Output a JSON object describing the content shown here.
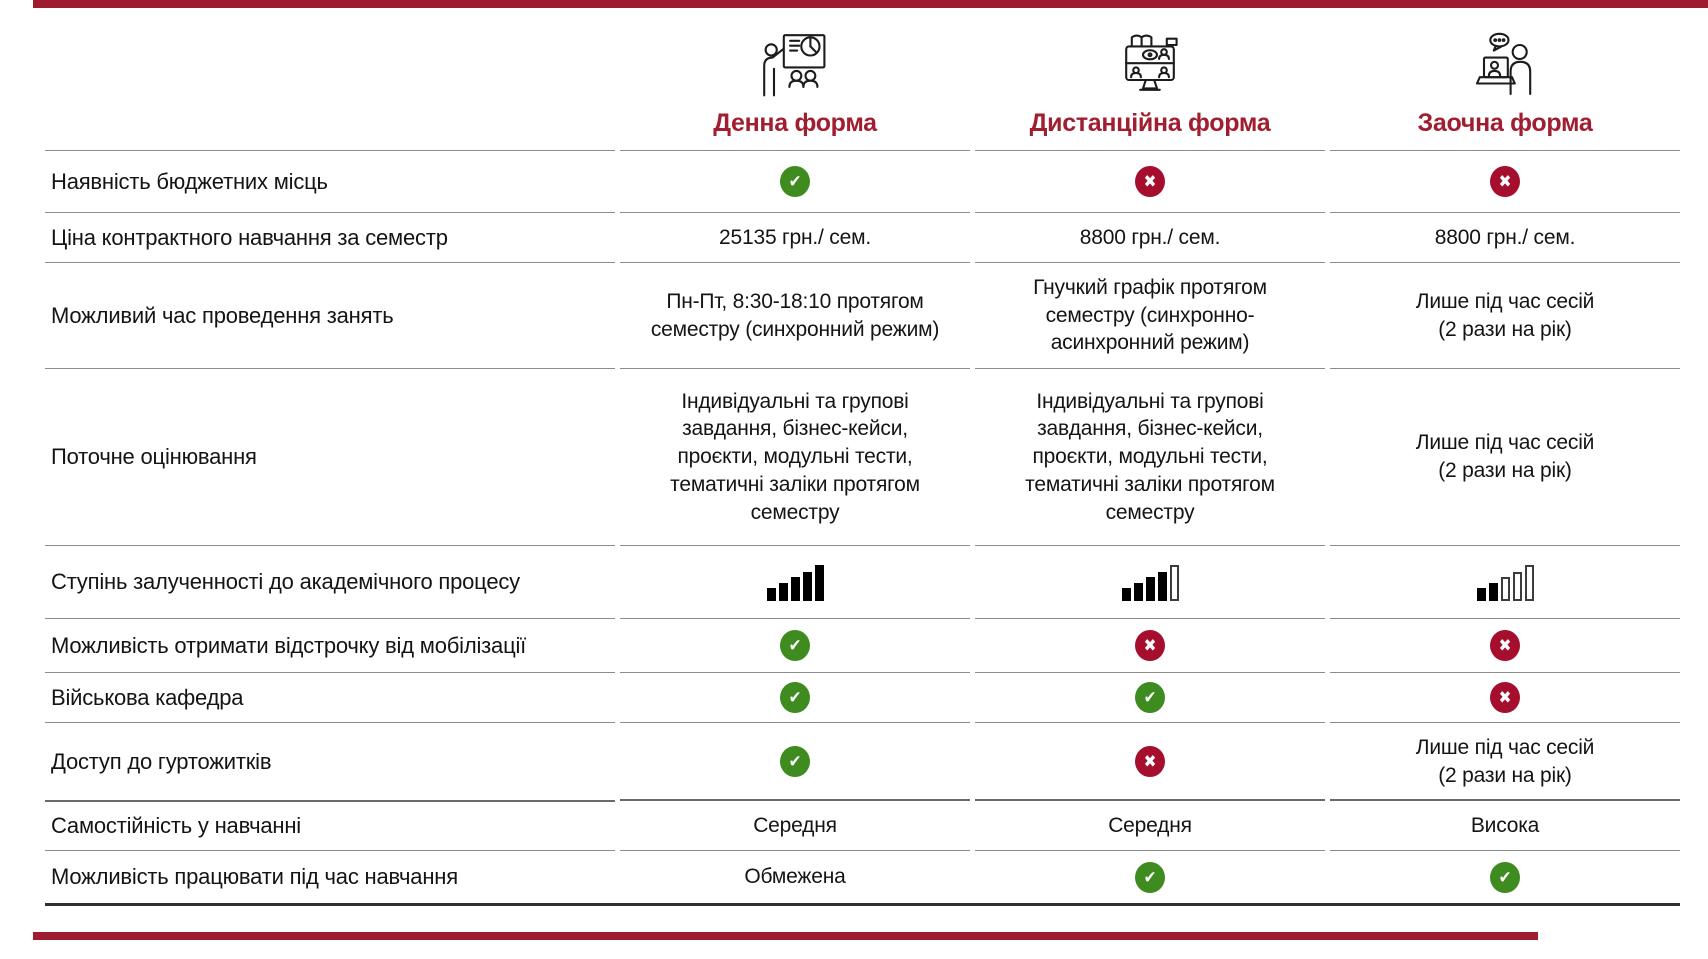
{
  "theme": {
    "accent_red": "#9e1b30",
    "header_text_red": "#a01e2f",
    "check_green": "#3e8b1f",
    "cross_red": "#a50e2d",
    "bar_black": "#000000"
  },
  "header": {
    "columns": [
      {
        "label": "Денна форма",
        "icon": "presentation-icon"
      },
      {
        "label": "Дистанційна форма",
        "icon": "online-learning-icon"
      },
      {
        "label": "Заочна форма",
        "icon": "consultation-icon"
      }
    ]
  },
  "rows": [
    {
      "label": "Наявність бюджетних місць",
      "cells": [
        {
          "type": "mark",
          "value": "yes"
        },
        {
          "type": "mark",
          "value": "no"
        },
        {
          "type": "mark",
          "value": "no"
        }
      ]
    },
    {
      "label": "Ціна контрактного навчання за семестр",
      "cells": [
        {
          "type": "text",
          "value": "25135 грн./ сем."
        },
        {
          "type": "text",
          "value": "8800 грн./ сем."
        },
        {
          "type": "text",
          "value": "8800 грн./ сем."
        }
      ]
    },
    {
      "label": "Можливий час проведення занять",
      "cells": [
        {
          "type": "text",
          "value": "Пн-Пт, 8:30-18:10 протягом семестру (синхронний режим)"
        },
        {
          "type": "text",
          "value": "Гнучкий графік протягом семестру (синхронно-асинхронний режим)"
        },
        {
          "type": "text",
          "value": "Лише під час сесій (2 рази на рік)"
        }
      ]
    },
    {
      "label": "Поточне оцінювання",
      "cells": [
        {
          "type": "text",
          "value": "Індивідуальні та групові завдання, бізнес-кейси, проєкти, модульні тести, тематичні заліки протягом семестру"
        },
        {
          "type": "text",
          "value": "Індивідуальні та групові завдання, бізнес-кейси, проєкти, модульні тести, тематичні заліки протягом семестру"
        },
        {
          "type": "text",
          "value": "Лише під час сесій (2 рази на рік)"
        }
      ]
    },
    {
      "label": "Ступінь залученності до академічного процесу",
      "cells": [
        {
          "type": "bars",
          "filled": 5,
          "total": 5
        },
        {
          "type": "bars",
          "filled": 4,
          "total": 5
        },
        {
          "type": "bars",
          "filled": 2,
          "total": 5
        }
      ]
    },
    {
      "label": "Можливість отримати відстрочку від мобілізації",
      "cells": [
        {
          "type": "mark",
          "value": "yes"
        },
        {
          "type": "mark",
          "value": "no"
        },
        {
          "type": "mark",
          "value": "no"
        }
      ]
    },
    {
      "label": "Військова кафедра",
      "cells": [
        {
          "type": "mark",
          "value": "yes"
        },
        {
          "type": "mark",
          "value": "yes"
        },
        {
          "type": "mark",
          "value": "no"
        }
      ]
    },
    {
      "label": "Доступ до гуртожитків",
      "cells": [
        {
          "type": "mark",
          "value": "yes"
        },
        {
          "type": "mark",
          "value": "no"
        },
        {
          "type": "text",
          "value": "Лише під час сесій (2 рази на рік)"
        }
      ]
    },
    {
      "label": "Самостійність у навчанні",
      "cells": [
        {
          "type": "text",
          "value": "Середня"
        },
        {
          "type": "text",
          "value": "Середня"
        },
        {
          "type": "text",
          "value": "Висока"
        }
      ]
    },
    {
      "label": "Можливість працювати під час навчання",
      "cells": [
        {
          "type": "text",
          "value": "Обмежена"
        },
        {
          "type": "mark",
          "value": "yes"
        },
        {
          "type": "mark",
          "value": "yes"
        }
      ]
    }
  ]
}
